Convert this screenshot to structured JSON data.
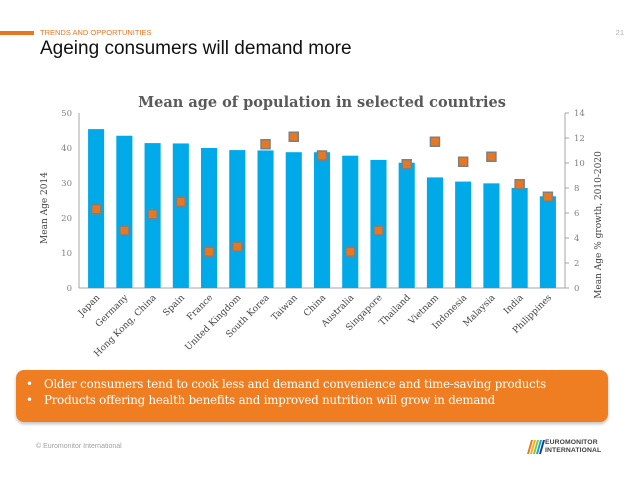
{
  "header": {
    "section": "TRENDS AND OPPORTUNITIES",
    "page_number": "21",
    "title": "Ageing consumers will demand more",
    "accent_color": "#e87722"
  },
  "chart_data": {
    "type": "bar",
    "title": "Mean age of population in selected countries",
    "categories": [
      "Japan",
      "Germany",
      "Hong Kong, China",
      "Spain",
      "France",
      "United Kingdom",
      "South Korea",
      "Taiwan",
      "China",
      "Australia",
      "Singapore",
      "Thailand",
      "Vietnam",
      "Indonesia",
      "Malaysia",
      "India",
      "Philippines"
    ],
    "series": [
      {
        "name": "Mean Age 2014",
        "type": "bar",
        "axis": "left",
        "color": "#00a9e8",
        "values": [
          45.4,
          43.5,
          41.4,
          41.3,
          40.0,
          39.4,
          39.3,
          38.8,
          38.8,
          37.8,
          36.6,
          35.8,
          31.6,
          30.4,
          29.9,
          28.6,
          26.2
        ]
      },
      {
        "name": "Mean Age % growth, 2010-2020",
        "type": "scatter",
        "marker": "square",
        "axis": "right",
        "color": "#e87722",
        "edge_color": "#7f7f7f",
        "values": [
          6.3,
          4.6,
          5.9,
          6.9,
          2.9,
          3.3,
          11.5,
          12.1,
          10.6,
          2.9,
          4.6,
          9.9,
          11.7,
          10.1,
          10.5,
          8.3,
          7.3
        ]
      }
    ],
    "ylabel": "Mean Age 2014",
    "ylim": [
      0,
      50
    ],
    "yticks": [
      "0",
      "10",
      "20",
      "30",
      "40",
      "50"
    ],
    "y2label": "Mean Age % growth, 2010-2020",
    "y2lim": [
      0,
      14
    ],
    "y2ticks": [
      "0",
      "2",
      "4",
      "6",
      "8",
      "10",
      "12",
      "14"
    ],
    "grid": false,
    "legend": "none"
  },
  "callout": {
    "bullet": "•",
    "items": [
      "Older consumers tend to cook less and demand convenience and time-saving products",
      "Products offering health benefits and improved nutrition will grow in demand"
    ],
    "background": "#ef7d22"
  },
  "footer": {
    "copyright": "© Euromonitor International",
    "logo_line1": "EUROMONITOR",
    "logo_line2": "INTERNATIONAL"
  }
}
